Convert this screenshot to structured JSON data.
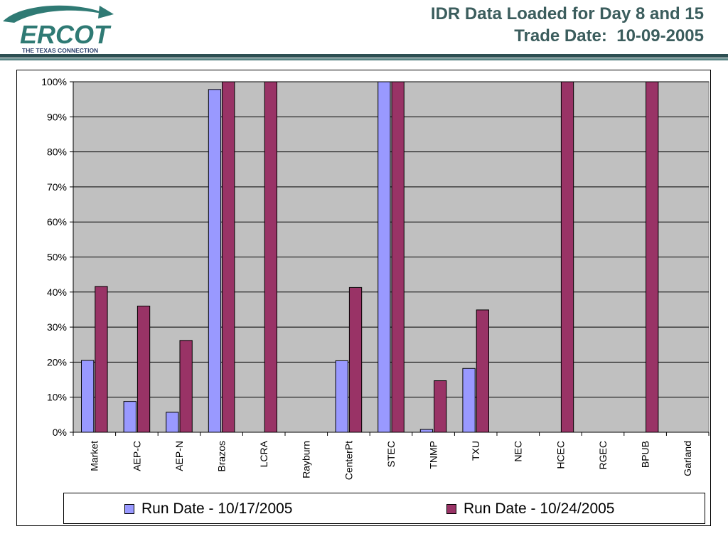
{
  "header": {
    "title": "IDR Data Loaded for Day 8 and 15\nTrade Date:  10-09-2005",
    "logo_text": "ERCOT",
    "logo_tagline": "THE TEXAS CONNECTION"
  },
  "colors": {
    "series1": "#9999ff",
    "series2": "#993366",
    "plot_bg": "#c0c0c0",
    "title": "#3b5d5d",
    "logo_teal": "#2f7a74"
  },
  "chart_data": {
    "type": "bar",
    "title": "",
    "xlabel": "",
    "ylabel": "",
    "ylim": [
      0,
      100
    ],
    "y_ticks": [
      "0%",
      "10%",
      "20%",
      "30%",
      "40%",
      "50%",
      "60%",
      "70%",
      "80%",
      "90%",
      "100%"
    ],
    "categories": [
      "Market",
      "AEP-C",
      "AEP-N",
      "Brazos",
      "LCRA",
      "Rayburn",
      "CenterPt",
      "STEC",
      "TNMP",
      "TXU",
      "NEC",
      "HCEC",
      "RGEC",
      "BPUB",
      "Garland"
    ],
    "series": [
      {
        "name": "Run Date - 10/17/2005",
        "values": [
          20.5,
          8.8,
          5.7,
          97.8,
          0,
          0,
          20.4,
          100,
          0.8,
          18.2,
          0,
          0,
          0,
          0,
          0
        ]
      },
      {
        "name": "Run Date - 10/24/2005",
        "values": [
          41.6,
          36.0,
          26.2,
          100,
          100,
          0,
          41.3,
          100,
          14.7,
          34.9,
          0,
          100,
          0,
          100,
          0
        ]
      }
    ],
    "grid": true,
    "legend_position": "bottom"
  }
}
